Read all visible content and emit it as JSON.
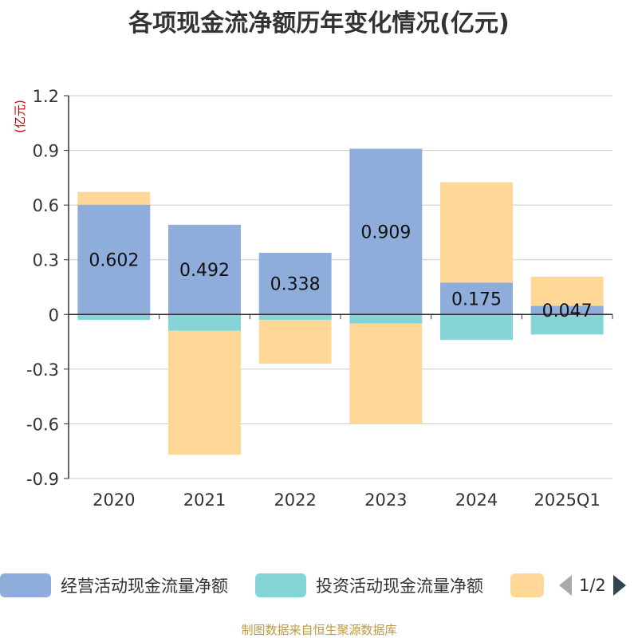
{
  "title": "各项现金流净额历年变化情况(亿元)",
  "footer": "制图数据来自恒生聚源数据库",
  "legend": {
    "items": [
      {
        "label": "经营活动现金流量净额",
        "color": "#8eadda"
      },
      {
        "label": "投资活动现金流量净额",
        "color": "#85d5d7"
      },
      {
        "label": "",
        "color": "#ffd898"
      }
    ],
    "page": "1/2"
  },
  "chart_data": {
    "type": "bar",
    "stacked": true,
    "categories": [
      "2020",
      "2021",
      "2022",
      "2023",
      "2024",
      "2025Q1"
    ],
    "series": [
      {
        "name": "经营活动现金流量净额",
        "color": "#8eadda",
        "values": [
          0.602,
          0.492,
          0.338,
          0.909,
          0.175,
          0.047
        ],
        "labels": [
          "0.602",
          "0.492",
          "0.338",
          "0.909",
          "0.175",
          "0.047"
        ]
      },
      {
        "name": "投资活动现金流量净额",
        "color": "#85d5d7",
        "values": [
          -0.03,
          -0.09,
          -0.03,
          -0.05,
          -0.14,
          -0.11
        ]
      },
      {
        "name": "",
        "color": "#ffd898",
        "values": [
          0.07,
          -0.68,
          -0.24,
          -0.55,
          0.55,
          0.16
        ]
      }
    ],
    "ylabel": "(亿元)",
    "ylim": [
      -0.9,
      1.2
    ],
    "yticks": [
      "1.2",
      "0.9",
      "0.6",
      "0.3",
      "0",
      "-0.3",
      "-0.6",
      "-0.9"
    ],
    "grid": true
  }
}
